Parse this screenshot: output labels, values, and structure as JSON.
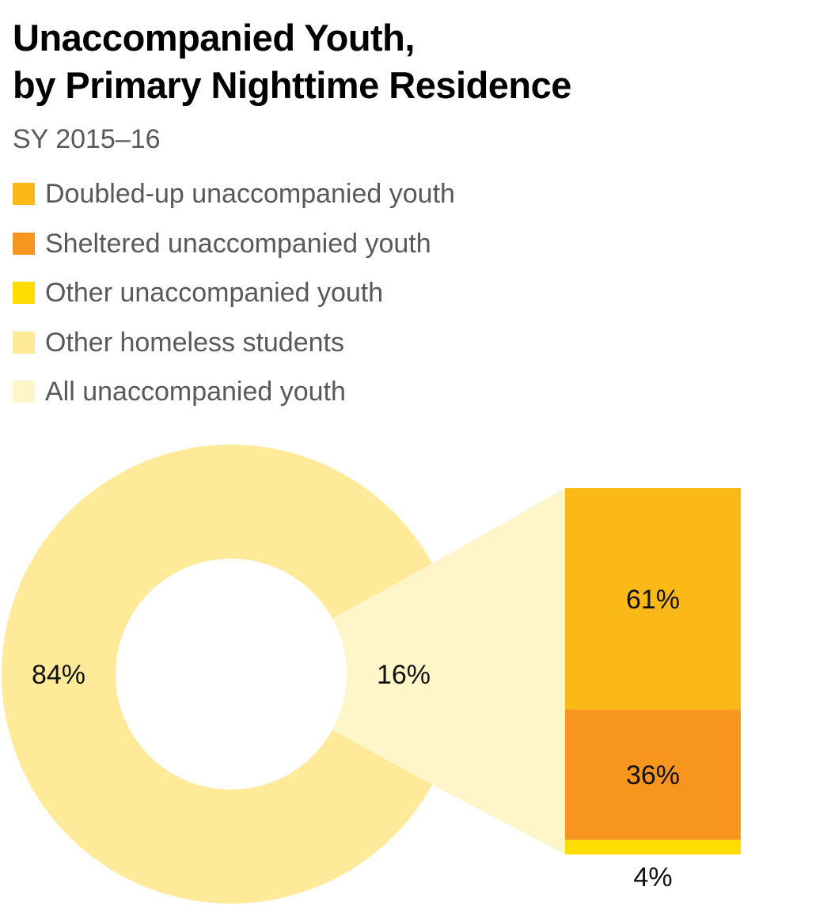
{
  "title_lines": [
    "Unaccompanied Youth,",
    "by Primary Nighttime Residence"
  ],
  "subtitle": "SY 2015–16",
  "legend": [
    {
      "label": "Doubled-up unaccompanied youth",
      "color": "#FBB917"
    },
    {
      "label": "Sheltered unaccompanied youth",
      "color": "#F7961F"
    },
    {
      "label": "Other unaccompanied youth",
      "color": "#FFDD00"
    },
    {
      "label": "Other homeless students",
      "color": "#FEEA98"
    },
    {
      "label": "All unaccompanied youth",
      "color": "#FEF5C8"
    }
  ],
  "chart_data": [
    {
      "type": "pie",
      "variant": "donut",
      "slices": [
        {
          "name": "Other homeless students",
          "value": 84,
          "label": "84%",
          "color": "#FEEA98"
        },
        {
          "name": "All unaccompanied youth",
          "value": 16,
          "label": "16%",
          "color": "#FEF5C8"
        }
      ]
    },
    {
      "type": "bar",
      "variant": "stacked-100",
      "categories": [
        "All unaccompanied youth"
      ],
      "segments": [
        {
          "name": "Doubled-up unaccompanied youth",
          "value": 61,
          "label": "61%",
          "color": "#FBB917"
        },
        {
          "name": "Sheltered unaccompanied youth",
          "value": 36,
          "label": "36%",
          "color": "#F7961F"
        },
        {
          "name": "Other unaccompanied youth",
          "value": 4,
          "label": "4%",
          "color": "#FFDD00"
        }
      ]
    }
  ]
}
